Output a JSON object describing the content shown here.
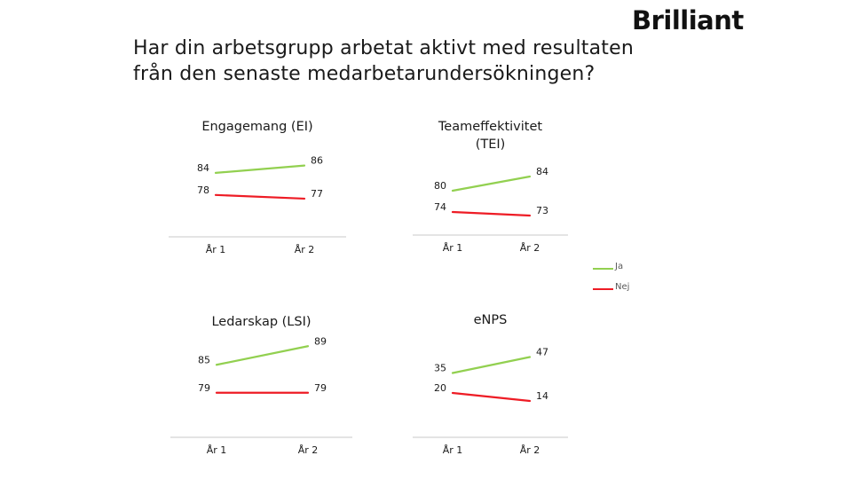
{
  "brand": {
    "logo_text": "Brilliant"
  },
  "page": {
    "title_line1": "Har din arbetsgrupp arbetat aktivt med resultaten",
    "title_line2": "från den senaste medarbetarundersökningen?"
  },
  "colors": {
    "ja": "#92d050",
    "nej": "#ee1c25",
    "axis": "#c8c8c8"
  },
  "legend": {
    "items": [
      {
        "label": "Ja",
        "color": "#92d050"
      },
      {
        "label": "Nej",
        "color": "#ee1c25"
      }
    ]
  },
  "chart_data": [
    {
      "type": "line",
      "title_lines": [
        "Engagemang (EI)"
      ],
      "categories": [
        "År 1",
        "År 2"
      ],
      "series": [
        {
          "name": "Ja",
          "values": [
            84,
            86
          ]
        },
        {
          "name": "Nej",
          "values": [
            78,
            77
          ]
        }
      ],
      "ylim": [
        70,
        90
      ]
    },
    {
      "type": "line",
      "title_lines": [
        "Teameffektivitet",
        "(TEI)"
      ],
      "categories": [
        "År 1",
        "År 2"
      ],
      "series": [
        {
          "name": "Ja",
          "values": [
            80,
            84
          ]
        },
        {
          "name": "Nej",
          "values": [
            74,
            73
          ]
        }
      ],
      "ylim": [
        70,
        90
      ]
    },
    {
      "type": "line",
      "title_lines": [
        "Ledarskap (LSI)"
      ],
      "categories": [
        "År 1",
        "År 2"
      ],
      "series": [
        {
          "name": "Ja",
          "values": [
            85,
            89
          ]
        },
        {
          "name": "Nej",
          "values": [
            79,
            79
          ]
        }
      ],
      "ylim": [
        70,
        90
      ]
    },
    {
      "type": "line",
      "title_lines": [
        "eNPS"
      ],
      "categories": [
        "År 1",
        "År 2"
      ],
      "series": [
        {
          "name": "Ja",
          "values": [
            35,
            47
          ]
        },
        {
          "name": "Nej",
          "values": [
            20,
            14
          ]
        }
      ],
      "ylim": [
        -10,
        60
      ]
    }
  ]
}
